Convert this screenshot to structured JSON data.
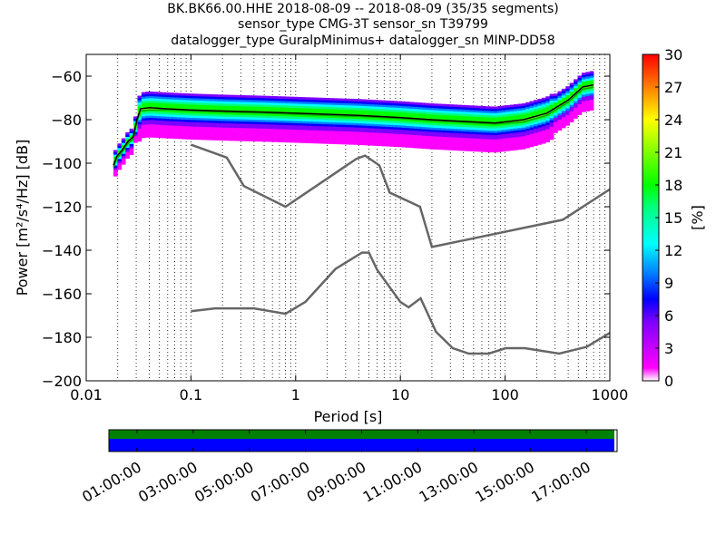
{
  "titles": {
    "line1": "BK.BK66.00.HHE   2018-08-09 -- 2018-08-09  (35/35 segments)",
    "line2": "sensor_type CMG-3T sensor_sn T39799",
    "line3": "datalogger_type GuralpMinimus+ datalogger_sn MINP-DD58"
  },
  "chart_data": [
    {
      "type": "heatmap",
      "title": "BK.BK66.00.HHE   2018-08-09 -- 2018-08-09  (35/35 segments)",
      "xlabel": "Period [s]",
      "ylabel": "Power [m²/s⁴/Hz] [dB]",
      "xscale": "log",
      "xlim": [
        0.01,
        1000
      ],
      "ylim": [
        -200,
        -50
      ],
      "x_ticks": [
        0.01,
        0.1,
        1,
        10,
        100,
        1000
      ],
      "x_tick_labels": [
        "0.01",
        "0.1",
        "1",
        "10",
        "100",
        "1000"
      ],
      "y_ticks": [
        -200,
        -180,
        -160,
        -140,
        -120,
        -100,
        -80,
        -60
      ],
      "y_tick_labels": [
        "−200",
        "−180",
        "−160",
        "−140",
        "−120",
        "−100",
        "−80",
        "−60"
      ],
      "grid": "dotted vertical",
      "colorbar": {
        "label": "[%]",
        "range": [
          0,
          30
        ],
        "ticks": [
          0,
          3,
          6,
          9,
          12,
          15,
          18,
          21,
          24,
          27,
          30
        ],
        "colormap": "pqlx",
        "colors": [
          "#ffffff",
          "#ff00ff",
          "#7f00ff",
          "#0000ff",
          "#007fff",
          "#00ffff",
          "#00ff7f",
          "#00ff00",
          "#7fff00",
          "#ffff00",
          "#ff7f00",
          "#ff0000"
        ]
      },
      "mode_line": [
        [
          0.0182,
          -101
        ],
        [
          0.0195,
          -97
        ],
        [
          0.022,
          -94
        ],
        [
          0.025,
          -90
        ],
        [
          0.028,
          -88
        ],
        [
          0.0305,
          -80
        ],
        [
          0.033,
          -75
        ],
        [
          0.04,
          -74.5
        ],
        [
          0.06,
          -75
        ],
        [
          0.1,
          -75.5
        ],
        [
          0.2,
          -76
        ],
        [
          0.5,
          -76.5
        ],
        [
          1,
          -77
        ],
        [
          2,
          -77.5
        ],
        [
          4,
          -78
        ],
        [
          10,
          -79
        ],
        [
          20,
          -80
        ],
        [
          50,
          -81
        ],
        [
          80,
          -81.5
        ],
        [
          150,
          -80
        ],
        [
          250,
          -77
        ],
        [
          400,
          -71
        ],
        [
          550,
          -65
        ],
        [
          700,
          -64
        ]
      ],
      "mean_line": [
        [
          0.0182,
          -102
        ],
        [
          0.0195,
          -98
        ],
        [
          0.022,
          -95
        ],
        [
          0.025,
          -91
        ],
        [
          0.028,
          -89
        ],
        [
          0.0305,
          -81
        ],
        [
          0.033,
          -76
        ],
        [
          0.04,
          -75.5
        ],
        [
          0.06,
          -75.5
        ],
        [
          0.1,
          -76
        ],
        [
          0.2,
          -76.5
        ],
        [
          0.5,
          -77
        ],
        [
          1,
          -77.5
        ],
        [
          2,
          -78
        ],
        [
          4,
          -78.5
        ],
        [
          10,
          -79.5
        ],
        [
          20,
          -80.5
        ],
        [
          50,
          -81.5
        ],
        [
          80,
          -82
        ],
        [
          150,
          -81
        ],
        [
          250,
          -78
        ],
        [
          400,
          -72
        ],
        [
          550,
          -66
        ],
        [
          700,
          -65
        ]
      ],
      "nhnm": [
        [
          0.1,
          -91.5
        ],
        [
          0.22,
          -97.4
        ],
        [
          0.32,
          -110.5
        ],
        [
          0.8,
          -120
        ],
        [
          3.8,
          -98
        ],
        [
          4.6,
          -96.5
        ],
        [
          6.3,
          -101
        ],
        [
          7.9,
          -113.5
        ],
        [
          15.4,
          -120
        ],
        [
          20,
          -138.5
        ],
        [
          354.8,
          -126
        ],
        [
          1000,
          -112
        ]
      ],
      "nlnm": [
        [
          0.1,
          -168
        ],
        [
          0.17,
          -166.7
        ],
        [
          0.4,
          -166.7
        ],
        [
          0.8,
          -169.2
        ],
        [
          1.24,
          -163.7
        ],
        [
          2.4,
          -148.6
        ],
        [
          4.3,
          -141.1
        ],
        [
          5,
          -141.1
        ],
        [
          6,
          -149
        ],
        [
          10,
          -163.8
        ],
        [
          12,
          -166.2
        ],
        [
          15.6,
          -162.1
        ],
        [
          21.9,
          -177.5
        ],
        [
          31.6,
          -185
        ],
        [
          45,
          -187.5
        ],
        [
          70,
          -187.5
        ],
        [
          101,
          -185
        ],
        [
          154,
          -185
        ],
        [
          328,
          -187.5
        ],
        [
          600,
          -184.4
        ],
        [
          1000,
          -178
        ]
      ],
      "colors": {
        "mode": "#000000",
        "mean": "#00aa00",
        "noise_models": "#666666"
      }
    },
    {
      "type": "timeline",
      "x_tick_labels": [
        "01:00:00",
        "03:00:00",
        "05:00:00",
        "07:00:00",
        "09:00:00",
        "11:00:00",
        "13:00:00",
        "15:00:00",
        "17:00:00"
      ],
      "x_tick_hours": [
        1,
        3,
        5,
        7,
        9,
        11,
        13,
        15,
        17
      ],
      "xlim_hours": [
        0,
        18.1
      ],
      "data_coverage_hours": [
        0,
        18
      ],
      "psd_segments": 35,
      "colors": {
        "data": "#008000",
        "psd": "#0000ff"
      }
    }
  ]
}
